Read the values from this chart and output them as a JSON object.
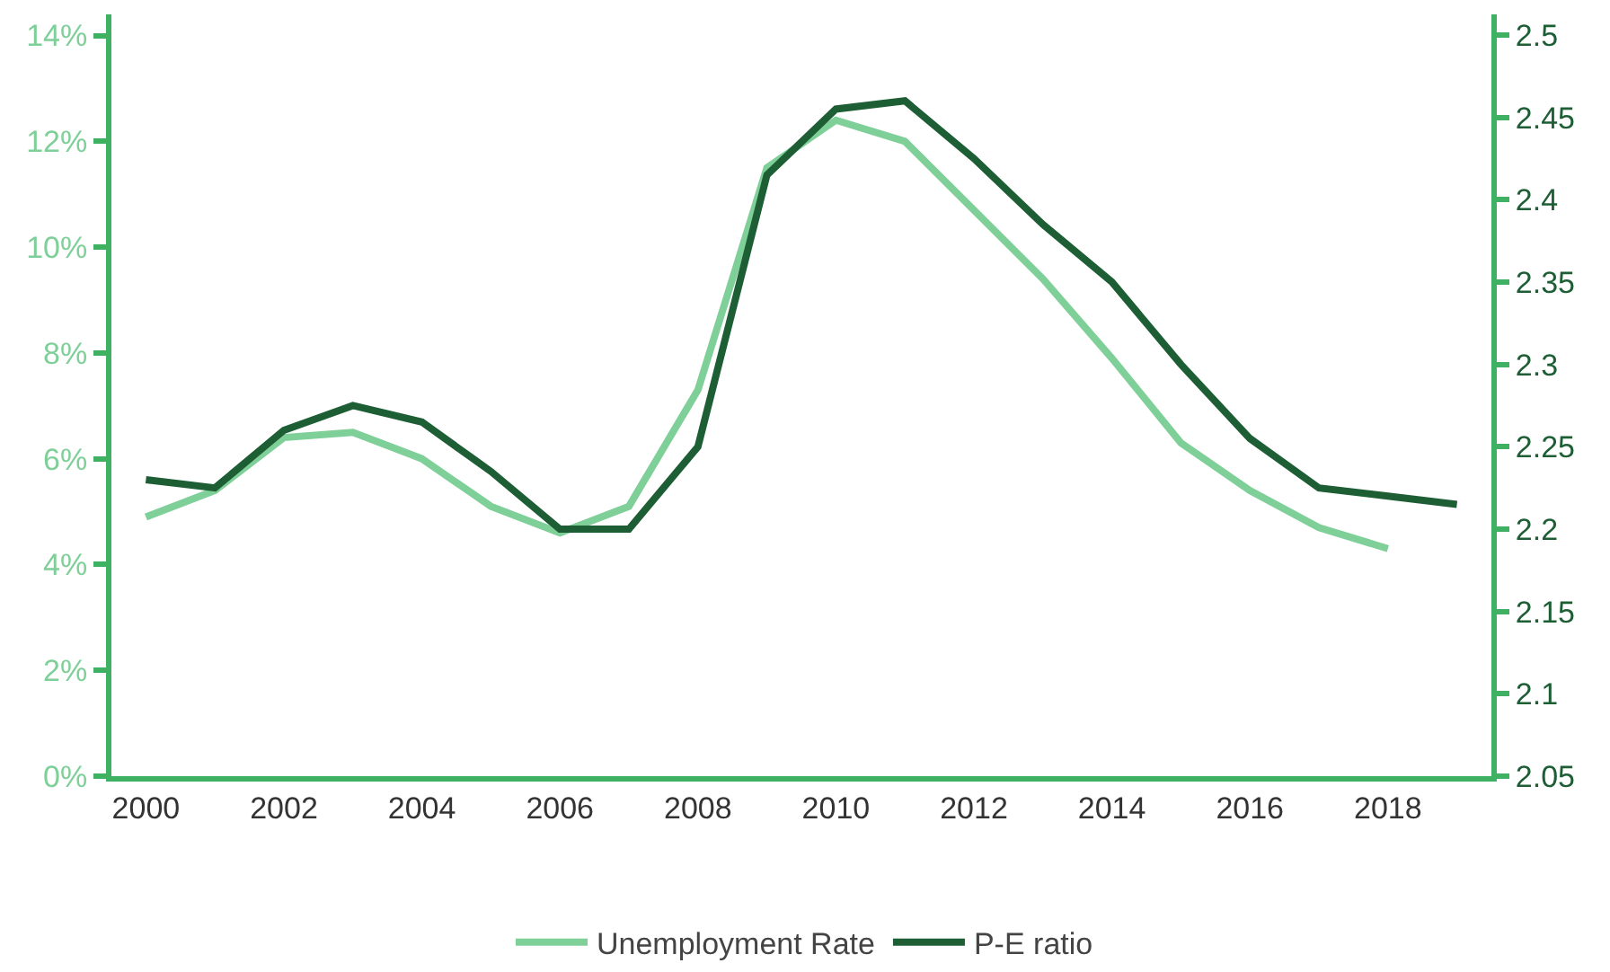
{
  "chart_data": {
    "type": "line",
    "x": [
      2000,
      2001,
      2002,
      2003,
      2004,
      2005,
      2006,
      2007,
      2008,
      2009,
      2010,
      2011,
      2012,
      2013,
      2014,
      2015,
      2016,
      2017,
      2018,
      2019
    ],
    "xlim": [
      1999.5,
      2019.5
    ],
    "xticks": [
      2000,
      2002,
      2004,
      2006,
      2008,
      2010,
      2012,
      2014,
      2016,
      2018
    ],
    "ylim": [
      0,
      14.4
    ],
    "yticks": [
      {
        "value": 0,
        "label": "0%"
      },
      {
        "value": 2,
        "label": "2%"
      },
      {
        "value": 4,
        "label": "4%"
      },
      {
        "value": 6,
        "label": "6%"
      },
      {
        "value": 8,
        "label": "8%"
      },
      {
        "value": 10,
        "label": "10%"
      },
      {
        "value": 12,
        "label": "12%"
      },
      {
        "value": 14,
        "label": "14%"
      }
    ],
    "y2lim": [
      2.05,
      2.5125
    ],
    "y2ticks": [
      2.05,
      2.1,
      2.15,
      2.2,
      2.25,
      2.3,
      2.35,
      2.4,
      2.45,
      2.5
    ],
    "series": [
      {
        "name": "Unemployment Rate",
        "color": "#7fcf98",
        "values": [
          4.9,
          5.4,
          6.4,
          6.5,
          6.0,
          5.1,
          4.6,
          5.1,
          7.3,
          11.5,
          12.4,
          12.0,
          10.7,
          9.4,
          7.9,
          6.3,
          5.4,
          4.7,
          4.3,
          null
        ]
      },
      {
        "name": "P-E ratio",
        "color": "#1d5e35",
        "axis": "y2",
        "values": [
          2.23,
          2.225,
          2.26,
          2.275,
          2.265,
          2.235,
          2.2,
          2.2,
          2.25,
          2.415,
          2.455,
          2.46,
          2.425,
          2.385,
          2.35,
          2.3,
          2.255,
          2.225,
          2.22,
          2.215
        ]
      }
    ],
    "grid": false,
    "legend": "bottom",
    "marker": "none",
    "line_style": "solid"
  }
}
